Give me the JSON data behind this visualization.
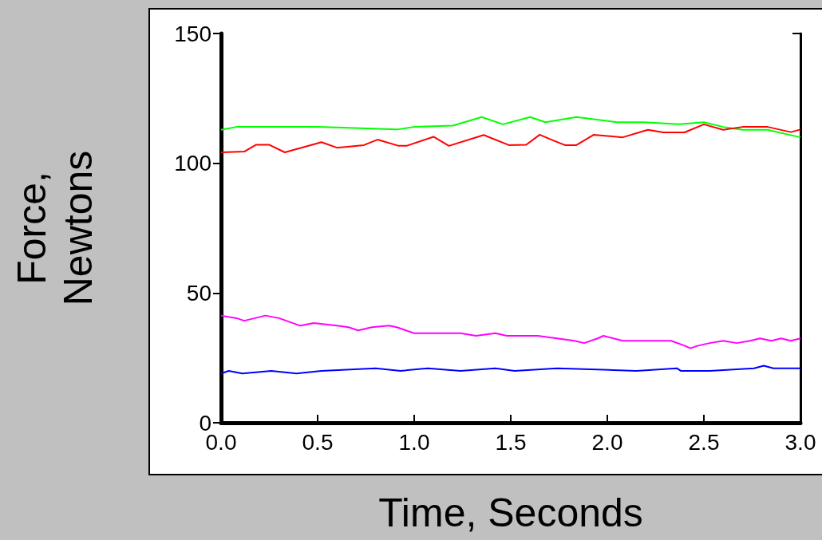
{
  "chart_data": {
    "type": "line",
    "xlabel": "Time, Seconds",
    "ylabel": "Force, Newtons",
    "xlim": [
      0,
      3
    ],
    "ylim": [
      0,
      150
    ],
    "xticks": [
      {
        "value": 0,
        "label": "0.0"
      },
      {
        "value": 0.5,
        "label": "0.5"
      },
      {
        "value": 1,
        "label": "1.0"
      },
      {
        "value": 1.5,
        "label": "1.5"
      },
      {
        "value": 2,
        "label": "2.0"
      },
      {
        "value": 2.5,
        "label": "2.5"
      },
      {
        "value": 3,
        "label": "3.0"
      }
    ],
    "yticks": [
      0,
      50,
      100,
      150
    ],
    "grid": false,
    "marker": "none",
    "line_style": "solid",
    "series": [
      {
        "color": "#00ff00",
        "x": [
          0,
          0.08,
          0.5,
          0.91,
          1.0,
          1.2,
          1.35,
          1.46,
          1.6,
          1.68,
          1.84,
          2.05,
          2.19,
          2.37,
          2.5,
          2.6,
          2.7,
          2.83,
          2.94,
          3.0
        ],
        "values": [
          112.9,
          114,
          114,
          113,
          114,
          114.5,
          117.8,
          115,
          117.8,
          115.8,
          117.8,
          115.8,
          115.8,
          115,
          115.8,
          114,
          112.9,
          112.9,
          111,
          110
        ]
      },
      {
        "color": "#ff0000",
        "x": [
          0,
          0.12,
          0.18,
          0.25,
          0.33,
          0.52,
          0.6,
          0.74,
          0.81,
          0.92,
          0.96,
          1.1,
          1.18,
          1.36,
          1.49,
          1.58,
          1.65,
          1.71,
          1.78,
          1.84,
          1.93,
          2.08,
          2.21,
          2.29,
          2.4,
          2.5,
          2.6,
          2.7,
          2.83,
          2.95,
          3.0
        ],
        "values": [
          104.2,
          104.5,
          107.1,
          107.1,
          104.2,
          108.1,
          106,
          107,
          109.1,
          106.7,
          106.7,
          110.2,
          106.7,
          110.9,
          107,
          107.1,
          111,
          109.1,
          107,
          107,
          111,
          110,
          112.9,
          111.9,
          111.9,
          115,
          112.9,
          114,
          114,
          112,
          113
        ]
      },
      {
        "color": "#ff00ff",
        "x": [
          0,
          0.08,
          0.12,
          0.23,
          0.3,
          0.41,
          0.48,
          0.6,
          0.66,
          0.71,
          0.78,
          0.87,
          0.91,
          1.0,
          1.14,
          1.24,
          1.32,
          1.42,
          1.48,
          1.64,
          1.74,
          1.83,
          1.88,
          1.95,
          1.98,
          2.08,
          2.23,
          2.33,
          2.4,
          2.43,
          2.47,
          2.53,
          2.6,
          2.67,
          2.74,
          2.79,
          2.85,
          2.9,
          2.95,
          3.0
        ],
        "values": [
          41.3,
          40.3,
          39.3,
          41.3,
          40.3,
          37.4,
          38.4,
          37.4,
          36.8,
          35.6,
          36.8,
          37.4,
          36.8,
          34.5,
          34.5,
          34.5,
          33.5,
          34.5,
          33.5,
          33.5,
          32.5,
          31.6,
          30.7,
          32.5,
          33.5,
          31.6,
          31.6,
          31.6,
          29.7,
          28.7,
          29.7,
          30.7,
          31.6,
          30.7,
          31.6,
          32.5,
          31.6,
          32.5,
          31.6,
          32.5
        ]
      },
      {
        "color": "#0000ff",
        "x": [
          0,
          0.04,
          0.11,
          0.26,
          0.39,
          0.52,
          0.8,
          0.93,
          1.07,
          1.24,
          1.42,
          1.52,
          1.74,
          2.15,
          2.36,
          2.38,
          2.53,
          2.76,
          2.81,
          2.86,
          3.0
        ],
        "values": [
          19,
          20,
          19,
          20,
          19,
          20,
          21,
          20,
          21,
          20,
          21,
          20,
          21,
          20,
          21,
          20,
          20,
          21,
          22,
          21,
          21
        ]
      }
    ]
  }
}
